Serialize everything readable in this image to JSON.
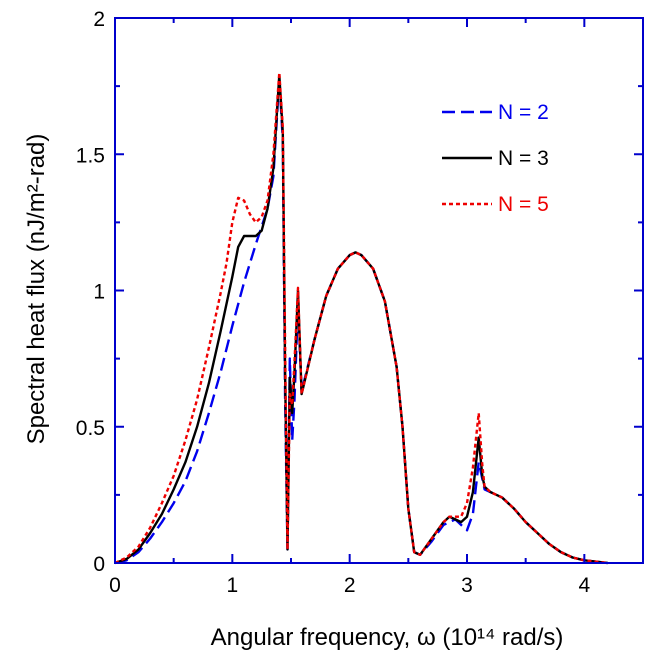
{
  "chart_data": {
    "type": "line",
    "title": "",
    "xlabel": "Angular frequency, ω (10¹⁴ rad/s)",
    "ylabel": "Spectral heat flux (nJ/m²-rad)",
    "xlim": [
      0,
      4.5
    ],
    "ylim": [
      0,
      2
    ],
    "x_ticks": [
      0,
      1,
      2,
      3,
      4
    ],
    "y_ticks": [
      0,
      0.5,
      1,
      1.5,
      2
    ],
    "x_tick_labels": [
      "0",
      "1",
      "2",
      "3",
      "4"
    ],
    "y_tick_labels": [
      "0",
      "0.5",
      "1",
      "1.5",
      "2"
    ],
    "axis_color": "#0000cc",
    "grid": false,
    "legend_position": "top-right",
    "series": [
      {
        "name": "N = 2",
        "color": "#0000ee",
        "style": "dashed",
        "points": [
          [
            0,
            0
          ],
          [
            0.1,
            0.01
          ],
          [
            0.2,
            0.04
          ],
          [
            0.3,
            0.09
          ],
          [
            0.4,
            0.15
          ],
          [
            0.5,
            0.22
          ],
          [
            0.6,
            0.3
          ],
          [
            0.7,
            0.41
          ],
          [
            0.8,
            0.55
          ],
          [
            0.9,
            0.7
          ],
          [
            1.0,
            0.87
          ],
          [
            1.1,
            1.03
          ],
          [
            1.2,
            1.17
          ],
          [
            1.3,
            1.3
          ],
          [
            1.35,
            1.42
          ],
          [
            1.4,
            1.78
          ],
          [
            1.43,
            1.55
          ],
          [
            1.45,
            0.6
          ],
          [
            1.47,
            0.05
          ],
          [
            1.49,
            0.75
          ],
          [
            1.51,
            0.45
          ],
          [
            1.53,
            0.6
          ],
          [
            1.56,
            0.95
          ],
          [
            1.59,
            0.63
          ],
          [
            1.7,
            0.82
          ],
          [
            1.8,
            0.98
          ],
          [
            1.9,
            1.08
          ],
          [
            2.0,
            1.13
          ],
          [
            2.05,
            1.14
          ],
          [
            2.1,
            1.13
          ],
          [
            2.2,
            1.08
          ],
          [
            2.3,
            0.96
          ],
          [
            2.4,
            0.72
          ],
          [
            2.45,
            0.5
          ],
          [
            2.5,
            0.2
          ],
          [
            2.55,
            0.04
          ],
          [
            2.6,
            0.03
          ],
          [
            2.7,
            0.08
          ],
          [
            2.8,
            0.14
          ],
          [
            2.9,
            0.16
          ],
          [
            2.95,
            0.14
          ],
          [
            3.0,
            0.12
          ],
          [
            3.05,
            0.18
          ],
          [
            3.1,
            0.37
          ],
          [
            3.15,
            0.27
          ],
          [
            3.2,
            0.26
          ],
          [
            3.3,
            0.24
          ],
          [
            3.4,
            0.2
          ],
          [
            3.5,
            0.15
          ],
          [
            3.6,
            0.11
          ],
          [
            3.7,
            0.07
          ],
          [
            3.8,
            0.04
          ],
          [
            3.9,
            0.02
          ],
          [
            4.0,
            0.01
          ],
          [
            4.2,
            0.0
          ]
        ]
      },
      {
        "name": "N = 3",
        "color": "#000000",
        "style": "solid",
        "points": [
          [
            0,
            0
          ],
          [
            0.1,
            0.015
          ],
          [
            0.2,
            0.05
          ],
          [
            0.3,
            0.11
          ],
          [
            0.4,
            0.18
          ],
          [
            0.5,
            0.27
          ],
          [
            0.6,
            0.37
          ],
          [
            0.7,
            0.5
          ],
          [
            0.8,
            0.66
          ],
          [
            0.9,
            0.85
          ],
          [
            1.0,
            1.05
          ],
          [
            1.05,
            1.16
          ],
          [
            1.1,
            1.2
          ],
          [
            1.2,
            1.2
          ],
          [
            1.25,
            1.22
          ],
          [
            1.3,
            1.3
          ],
          [
            1.35,
            1.45
          ],
          [
            1.4,
            1.79
          ],
          [
            1.43,
            1.58
          ],
          [
            1.45,
            0.7
          ],
          [
            1.47,
            0.05
          ],
          [
            1.49,
            0.68
          ],
          [
            1.51,
            0.55
          ],
          [
            1.53,
            0.7
          ],
          [
            1.56,
            1.0
          ],
          [
            1.59,
            0.62
          ],
          [
            1.7,
            0.82
          ],
          [
            1.8,
            0.98
          ],
          [
            1.9,
            1.08
          ],
          [
            2.0,
            1.13
          ],
          [
            2.05,
            1.14
          ],
          [
            2.1,
            1.13
          ],
          [
            2.2,
            1.08
          ],
          [
            2.3,
            0.96
          ],
          [
            2.4,
            0.72
          ],
          [
            2.45,
            0.5
          ],
          [
            2.5,
            0.2
          ],
          [
            2.55,
            0.04
          ],
          [
            2.6,
            0.03
          ],
          [
            2.7,
            0.09
          ],
          [
            2.8,
            0.15
          ],
          [
            2.85,
            0.17
          ],
          [
            2.9,
            0.16
          ],
          [
            2.95,
            0.15
          ],
          [
            3.0,
            0.17
          ],
          [
            3.05,
            0.26
          ],
          [
            3.1,
            0.46
          ],
          [
            3.13,
            0.32
          ],
          [
            3.15,
            0.28
          ],
          [
            3.2,
            0.26
          ],
          [
            3.3,
            0.24
          ],
          [
            3.4,
            0.2
          ],
          [
            3.5,
            0.15
          ],
          [
            3.6,
            0.11
          ],
          [
            3.7,
            0.07
          ],
          [
            3.8,
            0.04
          ],
          [
            3.9,
            0.02
          ],
          [
            4.0,
            0.01
          ],
          [
            4.2,
            0.0
          ]
        ]
      },
      {
        "name": "N = 5",
        "color": "#ee0000",
        "style": "dotted",
        "points": [
          [
            0,
            0
          ],
          [
            0.1,
            0.02
          ],
          [
            0.2,
            0.06
          ],
          [
            0.3,
            0.13
          ],
          [
            0.4,
            0.22
          ],
          [
            0.5,
            0.32
          ],
          [
            0.6,
            0.45
          ],
          [
            0.7,
            0.6
          ],
          [
            0.8,
            0.79
          ],
          [
            0.9,
            0.99
          ],
          [
            0.95,
            1.1
          ],
          [
            1.0,
            1.25
          ],
          [
            1.05,
            1.34
          ],
          [
            1.1,
            1.33
          ],
          [
            1.15,
            1.28
          ],
          [
            1.2,
            1.25
          ],
          [
            1.25,
            1.27
          ],
          [
            1.3,
            1.33
          ],
          [
            1.35,
            1.5
          ],
          [
            1.4,
            1.8
          ],
          [
            1.43,
            1.6
          ],
          [
            1.45,
            0.8
          ],
          [
            1.47,
            0.05
          ],
          [
            1.49,
            0.62
          ],
          [
            1.51,
            0.58
          ],
          [
            1.53,
            0.74
          ],
          [
            1.56,
            1.01
          ],
          [
            1.59,
            0.62
          ],
          [
            1.7,
            0.82
          ],
          [
            1.8,
            0.98
          ],
          [
            1.9,
            1.08
          ],
          [
            2.0,
            1.13
          ],
          [
            2.05,
            1.14
          ],
          [
            2.1,
            1.13
          ],
          [
            2.2,
            1.08
          ],
          [
            2.3,
            0.96
          ],
          [
            2.4,
            0.72
          ],
          [
            2.45,
            0.5
          ],
          [
            2.5,
            0.2
          ],
          [
            2.55,
            0.04
          ],
          [
            2.6,
            0.03
          ],
          [
            2.7,
            0.09
          ],
          [
            2.8,
            0.15
          ],
          [
            2.85,
            0.17
          ],
          [
            2.9,
            0.17
          ],
          [
            2.95,
            0.17
          ],
          [
            3.0,
            0.22
          ],
          [
            3.05,
            0.35
          ],
          [
            3.1,
            0.55
          ],
          [
            3.13,
            0.36
          ],
          [
            3.15,
            0.28
          ],
          [
            3.2,
            0.26
          ],
          [
            3.3,
            0.24
          ],
          [
            3.4,
            0.2
          ],
          [
            3.5,
            0.15
          ],
          [
            3.6,
            0.11
          ],
          [
            3.7,
            0.07
          ],
          [
            3.8,
            0.04
          ],
          [
            3.9,
            0.02
          ],
          [
            4.0,
            0.01
          ],
          [
            4.2,
            0.0
          ]
        ]
      }
    ]
  }
}
